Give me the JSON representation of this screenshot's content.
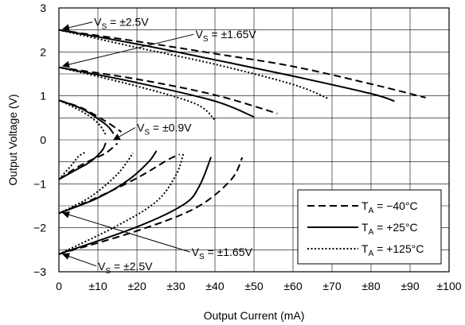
{
  "chart_data": {
    "type": "line",
    "xlabel": "Output Current (mA)",
    "ylabel": "Output Voltage (V)",
    "xlim": [
      0,
      100
    ],
    "ylim": [
      -3,
      3
    ],
    "grid": true,
    "legend_position": "bottom-right",
    "x_tick_labels": [
      "0",
      "±10",
      "±20",
      "±30",
      "±40",
      "±50",
      "±60",
      "±70",
      "±80",
      "±90",
      "±100"
    ],
    "y_tick_labels": [
      "3",
      "2",
      "1",
      "0",
      "−1",
      "−2",
      "−3"
    ],
    "legend": [
      {
        "key": "m40",
        "label": "T",
        "sub": "A",
        "suffix": " = −40°C",
        "dash": "dashed"
      },
      {
        "key": "p25",
        "label": "T",
        "sub": "A",
        "suffix": " = +25°C",
        "dash": "solid"
      },
      {
        "key": "p125",
        "label": "T",
        "sub": "A",
        "suffix": " = +125°C",
        "dash": "dotted"
      }
    ],
    "annotations": [
      {
        "pre": "V",
        "sub": "S",
        "post": " = ±2.5V",
        "x": 9,
        "y": 2.68,
        "ax": 1,
        "ay": 2.52
      },
      {
        "pre": "V",
        "sub": "S",
        "post": " = ±1.65V",
        "x": 35,
        "y": 2.4,
        "ax": 1,
        "ay": 1.68
      },
      {
        "pre": "V",
        "sub": "S",
        "post": " = ±0.9V",
        "x": 20,
        "y": 0.28,
        "ax": 14,
        "ay": 0.0
      },
      {
        "pre": "V",
        "sub": "S",
        "post": " = ±1.65V",
        "x": 34,
        "y": -2.55,
        "ax": 1,
        "ay": -1.66
      },
      {
        "pre": "V",
        "sub": "S",
        "post": " = ±2.5V",
        "x": 10,
        "y": -2.87,
        "ax": 1,
        "ay": -2.6
      }
    ],
    "series": [
      {
        "temp": "m40",
        "x": [
          0,
          20,
          40,
          60,
          80,
          94
        ],
        "y": [
          2.5,
          2.24,
          1.96,
          1.67,
          1.27,
          0.96
        ]
      },
      {
        "temp": "p25",
        "x": [
          0,
          20,
          40,
          60,
          80,
          86
        ],
        "y": [
          2.5,
          2.18,
          1.82,
          1.45,
          1.05,
          0.88
        ]
      },
      {
        "temp": "p125",
        "x": [
          0,
          20,
          40,
          60,
          69
        ],
        "y": [
          2.5,
          2.1,
          1.72,
          1.26,
          0.94
        ]
      },
      {
        "temp": "m40",
        "x": [
          0,
          20,
          40,
          56
        ],
        "y": [
          1.65,
          1.38,
          1.02,
          0.6
        ]
      },
      {
        "temp": "p25",
        "x": [
          0,
          20,
          40,
          50
        ],
        "y": [
          1.65,
          1.3,
          0.88,
          0.52
        ]
      },
      {
        "temp": "p125",
        "x": [
          0,
          20,
          35,
          40
        ],
        "y": [
          1.65,
          1.22,
          0.82,
          0.45
        ]
      },
      {
        "temp": "m40",
        "x": [
          0,
          6,
          12,
          16
        ],
        "y": [
          0.9,
          0.72,
          0.42,
          0.18
        ]
      },
      {
        "temp": "p25",
        "x": [
          0,
          6,
          12,
          14
        ],
        "y": [
          0.9,
          0.7,
          0.35,
          0.14
        ]
      },
      {
        "temp": "p125",
        "x": [
          0,
          6,
          10,
          12
        ],
        "y": [
          0.9,
          0.64,
          0.38,
          0.12
        ]
      },
      {
        "temp": "m40",
        "x": [
          0,
          4,
          8,
          12,
          15
        ],
        "y": [
          -0.9,
          -0.66,
          -0.47,
          -0.3,
          -0.08
        ]
      },
      {
        "temp": "p25",
        "x": [
          0,
          4,
          8,
          11,
          12
        ],
        "y": [
          -0.9,
          -0.7,
          -0.5,
          -0.25,
          -0.07
        ]
      },
      {
        "temp": "p125",
        "x": [
          0,
          3,
          5,
          7
        ],
        "y": [
          -0.9,
          -0.6,
          -0.38,
          -0.27
        ]
      },
      {
        "temp": "m40",
        "x": [
          0,
          10,
          20,
          28,
          31
        ],
        "y": [
          -1.67,
          -1.3,
          -0.87,
          -0.45,
          -0.33
        ]
      },
      {
        "temp": "p25",
        "x": [
          0,
          10,
          18,
          23,
          25
        ],
        "y": [
          -1.67,
          -1.32,
          -0.9,
          -0.5,
          -0.25
        ]
      },
      {
        "temp": "p125",
        "x": [
          0,
          8,
          15,
          19
        ],
        "y": [
          -1.67,
          -1.3,
          -0.78,
          -0.3
        ]
      },
      {
        "temp": "m40",
        "x": [
          0,
          20,
          35,
          44,
          47
        ],
        "y": [
          -2.6,
          -2.07,
          -1.55,
          -0.92,
          -0.4
        ]
      },
      {
        "temp": "p25",
        "x": [
          0,
          20,
          32,
          36,
          39
        ],
        "y": [
          -2.6,
          -1.98,
          -1.47,
          -1.05,
          -0.39
        ]
      },
      {
        "temp": "p125",
        "x": [
          0,
          15,
          25,
          30,
          32
        ],
        "y": [
          -2.6,
          -1.95,
          -1.4,
          -0.8,
          -0.28
        ]
      }
    ]
  }
}
